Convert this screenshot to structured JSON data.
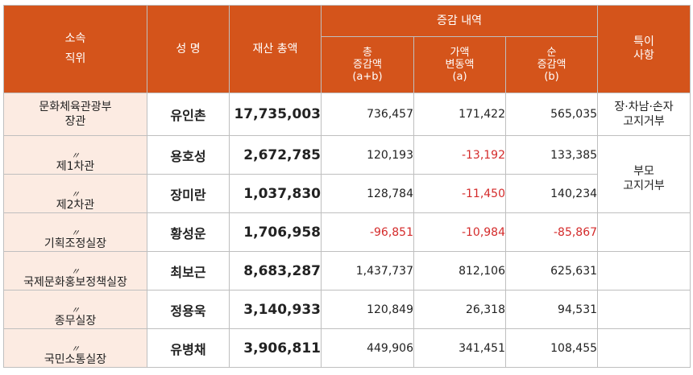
{
  "header": {
    "position_line1": "소속",
    "position_line2": "직위",
    "name": "성 명",
    "total": "재산 총액",
    "change_group": "증감 내역",
    "change_total_line1": "총",
    "change_total_line2": "증감액",
    "change_total_line3": "(a+b)",
    "change_price_line1": "가액",
    "change_price_line2": "변동액",
    "change_price_line3": "(a)",
    "change_net_line1": "순",
    "change_net_line2": "증감액",
    "change_net_line3": "(b)",
    "note_line1": "특이",
    "note_line2": "사항"
  },
  "rows": [
    {
      "position_line1": "문화체육관광부",
      "position_line2": "장관",
      "name": "유인촌",
      "total": "17,735,003",
      "change_total": "736,457",
      "change_price": "171,422",
      "change_net": "565,035",
      "note_line1": "장·차남·손자",
      "note_line2": "고지거부"
    },
    {
      "ditto": "〃",
      "position": "제1차관",
      "name": "용호성",
      "total": "2,672,785",
      "change_total": "120,193",
      "change_price": "-13,192",
      "change_net": "133,385"
    },
    {
      "ditto": "〃",
      "position": "제2차관",
      "name": "장미란",
      "total": "1,037,830",
      "change_total": "128,784",
      "change_price": "-11,450",
      "change_net": "140,234",
      "note_line1": "부모",
      "note_line2": "고지거부"
    },
    {
      "ditto": "〃",
      "position": "기획조정실장",
      "name": "황성운",
      "total": "1,706,958",
      "change_total": "-96,851",
      "change_price": "-10,984",
      "change_net": "-85,867"
    },
    {
      "ditto": "〃",
      "position": "국제문화홍보정책실장",
      "name": "최보근",
      "total": "8,683,287",
      "change_total": "1,437,737",
      "change_price": "812,106",
      "change_net": "625,631"
    },
    {
      "ditto": "〃",
      "position": "종무실장",
      "name": "정용욱",
      "total": "3,140,933",
      "change_total": "120,849",
      "change_price": "26,318",
      "change_net": "94,531"
    },
    {
      "ditto": "〃",
      "position": "국민소통실장",
      "name": "유병채",
      "total": "3,906,811",
      "change_total": "449,906",
      "change_price": "341,451",
      "change_net": "108,455"
    }
  ],
  "colors": {
    "header_bg": "#d4541b",
    "position_bg": "#fcebe2",
    "negative": "#d42b2b"
  }
}
